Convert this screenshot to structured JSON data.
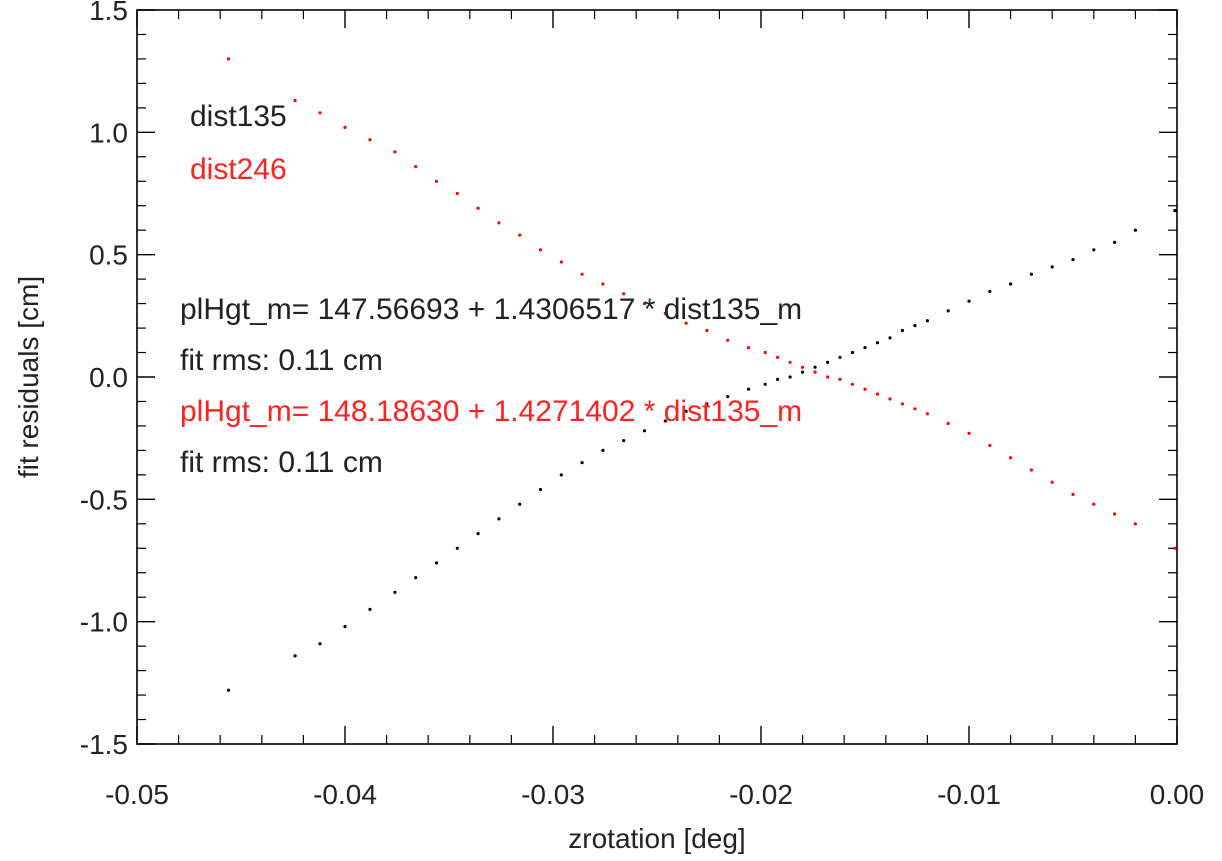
{
  "chart_data": {
    "type": "scatter",
    "title": "",
    "xlabel": "zrotation [deg]",
    "ylabel": "fit residuals [cm]",
    "xlim": [
      -0.05,
      0.0
    ],
    "ylim": [
      -1.5,
      1.5
    ],
    "x_ticks": [
      -0.05,
      -0.04,
      -0.03,
      -0.02,
      -0.01,
      0.0
    ],
    "x_tick_labels": [
      "-0.05",
      "-0.04",
      "-0.03",
      "-0.02",
      "-0.01",
      "0.00"
    ],
    "y_ticks": [
      -1.5,
      -1.0,
      -0.5,
      0.0,
      0.5,
      1.0,
      1.5
    ],
    "y_tick_labels": [
      "-1.5",
      "-1.0",
      "-0.5",
      "0.0",
      "0.5",
      "1.0",
      "1.5"
    ],
    "grid": false,
    "legend_position": "top-left",
    "series": [
      {
        "name": "dist135",
        "color": "#000000",
        "x": [
          -0.0456,
          -0.0424,
          -0.0412,
          -0.04,
          -0.0388,
          -0.0376,
          -0.0366,
          -0.0356,
          -0.0346,
          -0.0336,
          -0.0326,
          -0.0316,
          -0.0306,
          -0.0296,
          -0.0286,
          -0.0276,
          -0.0266,
          -0.0256,
          -0.0246,
          -0.0236,
          -0.0226,
          -0.0216,
          -0.0206,
          -0.0198,
          -0.0192,
          -0.0186,
          -0.018,
          -0.0174,
          -0.0168,
          -0.0162,
          -0.0156,
          -0.015,
          -0.0144,
          -0.0138,
          -0.0132,
          -0.0126,
          -0.012,
          -0.011,
          -0.01,
          -0.009,
          -0.008,
          -0.007,
          -0.006,
          -0.005,
          -0.004,
          -0.003,
          -0.002,
          -0.0001
        ],
        "y": [
          -1.28,
          -1.14,
          -1.09,
          -1.02,
          -0.95,
          -0.88,
          -0.82,
          -0.76,
          -0.7,
          -0.64,
          -0.58,
          -0.52,
          -0.46,
          -0.4,
          -0.35,
          -0.3,
          -0.26,
          -0.22,
          -0.18,
          -0.14,
          -0.11,
          -0.08,
          -0.05,
          -0.03,
          -0.01,
          0.0,
          0.02,
          0.04,
          0.06,
          0.08,
          0.1,
          0.12,
          0.14,
          0.16,
          0.19,
          0.21,
          0.23,
          0.27,
          0.31,
          0.35,
          0.38,
          0.42,
          0.45,
          0.48,
          0.52,
          0.55,
          0.6,
          0.68
        ]
      },
      {
        "name": "dist246",
        "color": "#ff0000",
        "x": [
          -0.0456,
          -0.0424,
          -0.0412,
          -0.04,
          -0.0388,
          -0.0376,
          -0.0366,
          -0.0356,
          -0.0346,
          -0.0336,
          -0.0326,
          -0.0316,
          -0.0306,
          -0.0296,
          -0.0286,
          -0.0276,
          -0.0266,
          -0.0256,
          -0.0246,
          -0.0236,
          -0.0226,
          -0.0216,
          -0.0206,
          -0.0198,
          -0.0192,
          -0.0186,
          -0.018,
          -0.0174,
          -0.0168,
          -0.0162,
          -0.0156,
          -0.015,
          -0.0144,
          -0.0138,
          -0.0132,
          -0.0126,
          -0.012,
          -0.011,
          -0.01,
          -0.009,
          -0.008,
          -0.007,
          -0.006,
          -0.005,
          -0.004,
          -0.003,
          -0.002,
          -0.0001
        ],
        "y": [
          1.3,
          1.13,
          1.08,
          1.02,
          0.97,
          0.92,
          0.86,
          0.8,
          0.75,
          0.69,
          0.63,
          0.58,
          0.52,
          0.47,
          0.42,
          0.38,
          0.34,
          0.3,
          0.26,
          0.22,
          0.19,
          0.15,
          0.12,
          0.1,
          0.08,
          0.06,
          0.04,
          0.02,
          0.0,
          -0.01,
          -0.03,
          -0.05,
          -0.07,
          -0.09,
          -0.11,
          -0.13,
          -0.15,
          -0.19,
          -0.23,
          -0.28,
          -0.33,
          -0.38,
          -0.43,
          -0.48,
          -0.52,
          -0.56,
          -0.6,
          -0.7
        ]
      }
    ],
    "legend": [
      {
        "label": "dist135",
        "color": "#000000"
      },
      {
        "label": "dist246",
        "color": "#ff0000"
      }
    ],
    "annotations": [
      {
        "text": "plHgt_m= 147.56693 +  1.4306517 * dist135_m",
        "color": "#000000"
      },
      {
        "text": "fit rms:  0.11 cm",
        "color": "#000000"
      },
      {
        "text": "plHgt_m= 148.18630 +  1.4271402 * dist135_m",
        "color": "#ff0000"
      },
      {
        "text": "fit rms:  0.11 cm",
        "color": "#000000"
      }
    ]
  }
}
